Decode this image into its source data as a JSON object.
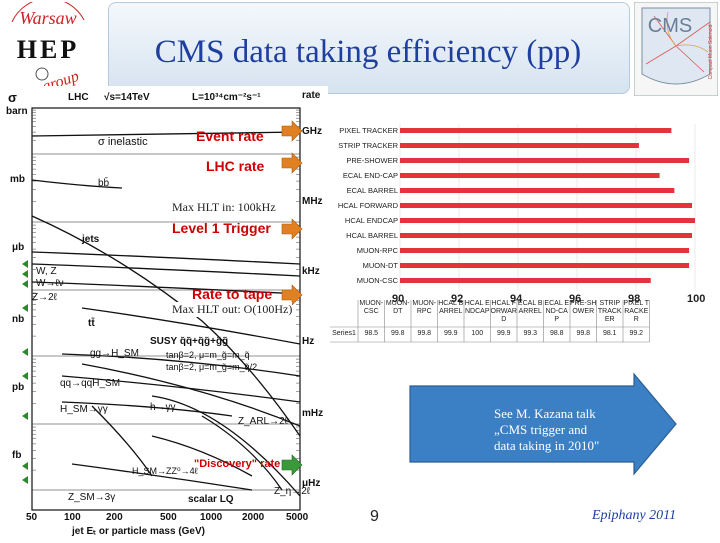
{
  "header": {
    "title": "CMS data taking efficiency (pp)",
    "logo_left": {
      "top": "Warsaw",
      "letters": "HEP",
      "bottom": "group"
    },
    "logo_right": {
      "text": "CMS",
      "side": "Compact Muon Solenoid"
    }
  },
  "physics_plot": {
    "header_left": "LHC",
    "header_energy": "√s=14TeV",
    "header_lumi": "L=10³⁴cm⁻²s⁻¹",
    "left_axis_title": "σ",
    "left_axis_unit": "barn",
    "right_axis_title": "rate",
    "left_ticks": [
      "mb",
      "μb",
      "nb",
      "pb",
      "fb"
    ],
    "right_ticks": [
      "GHz",
      "MHz",
      "kHz",
      "Hz",
      "mHz",
      "μHz"
    ],
    "x_ticks": [
      "50",
      "100",
      "200",
      "500",
      "1000",
      "2000",
      "5000"
    ],
    "x_axis_label": "jet Eₜ or particle mass (GeV)",
    "annotations": {
      "event_rate": "Event rate",
      "lhc_rate": "LHC rate",
      "level1": "Level 1 Trigger",
      "rate_to_tape": "Rate to tape",
      "discovery": "\"Discovery\" rate",
      "sigma_inelastic": "σ inelastic",
      "bb": "bb̄",
      "jets": "jets",
      "wz": "W, Z",
      "wlnu": "W→ℓν",
      "z2l": "Z→2ℓ",
      "tt": "tt̄",
      "gg_hsm": "gg→H_SM",
      "qq_qqhsm": "qq→qqH_SM",
      "hsm_gg": "H_SM→γγ",
      "h_gg": "h→γγ",
      "susy": "SUSY q̃q̃+q̃g̃+g̃g̃",
      "tanb2": "tanβ=2, μ=m_g̃=m_q̃",
      "tanb2b": "tanβ=2, μ=m_g̃=m_q̃/2",
      "zarl": "Z_ARL→2ℓ",
      "hsm_zz": "H_SM→ZZ⁰→4ℓ",
      "zsm": "Z_SM→3γ",
      "scalar_lq": "scalar LQ",
      "zeta": "Z_η→2ℓ"
    },
    "max_hlt_in": "Max HLT in: 100kHz",
    "max_hlt_out": "Max HLT out: O(100Hz)"
  },
  "chart_data": {
    "type": "bar",
    "orientation": "horizontal",
    "categories": [
      "PIXEL TRACKER",
      "STRIP TRACKER",
      "PRE-SHOWER",
      "ECAL END-CAP",
      "ECAL BARREL",
      "HCAL FORWARD",
      "HCAL ENDCAP",
      "HCAL BARREL",
      "MUON-RPC",
      "MUON-DT",
      "MUON-CSC"
    ],
    "series": [
      {
        "name": "Series1",
        "values": [
          99.2,
          98.1,
          99.8,
          98.8,
          99.3,
          99.9,
          100,
          99.9,
          99.8,
          99.8,
          98.5
        ]
      }
    ],
    "xlim": [
      90,
      100
    ],
    "x_ticks": [
      "90",
      "92",
      "94",
      "96",
      "98",
      "100"
    ],
    "table": {
      "headers": [
        "MUON-CSC",
        "MUON-DT",
        "MUON-RPC",
        "HCAL BARREL",
        "HCAL ENDCAP",
        "HCAL FORWARD",
        "ECAL BARREL",
        "ECAL END-CAP",
        "PRE-SHOWER",
        "STRIP TRACKER",
        "PIXEL TRACKER"
      ],
      "row_label": "Series1",
      "values": [
        "98.5",
        "99.8",
        "99.8",
        "99.9",
        "100",
        "99.9",
        "99.3",
        "98.8",
        "99.8",
        "98.1",
        "99.2"
      ]
    },
    "bar_color": "#e5333b"
  },
  "callout": {
    "text": [
      "See M. Kazana talk",
      "„CMS trigger and",
      "data taking in 2010\""
    ],
    "color": "#3b7fc4"
  },
  "footer": {
    "page": "9",
    "event": "Epiphany 2011"
  }
}
